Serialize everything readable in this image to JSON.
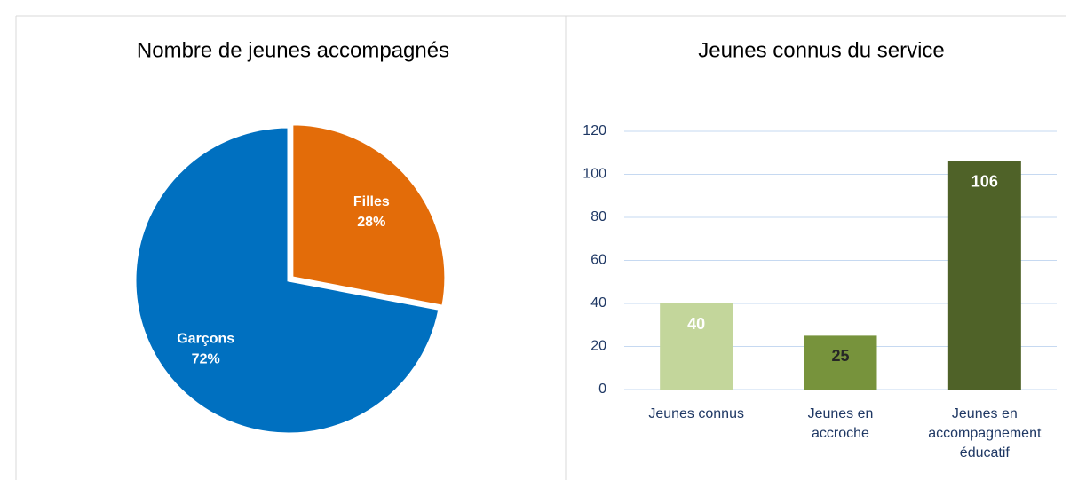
{
  "chart_data": [
    {
      "type": "pie",
      "title": "Nombre de jeunes accompagnés",
      "categories": [
        "Filles",
        "Garçons"
      ],
      "values": [
        28,
        72
      ],
      "value_labels": [
        "28%",
        "72%"
      ],
      "colors": [
        "#e36c09",
        "#0070c0"
      ]
    },
    {
      "type": "bar",
      "title": "Jeunes connus du service",
      "categories": [
        "Jeunes connus",
        "Jeunes en accroche",
        "Jeunes en accompagnement éducatif"
      ],
      "values": [
        40,
        25,
        106
      ],
      "colors": [
        "#c3d69b",
        "#77933c",
        "#4f6228"
      ],
      "ylim": [
        0,
        120
      ],
      "yticks": [
        0,
        20,
        40,
        60,
        80,
        100,
        120
      ],
      "grid": true
    }
  ]
}
